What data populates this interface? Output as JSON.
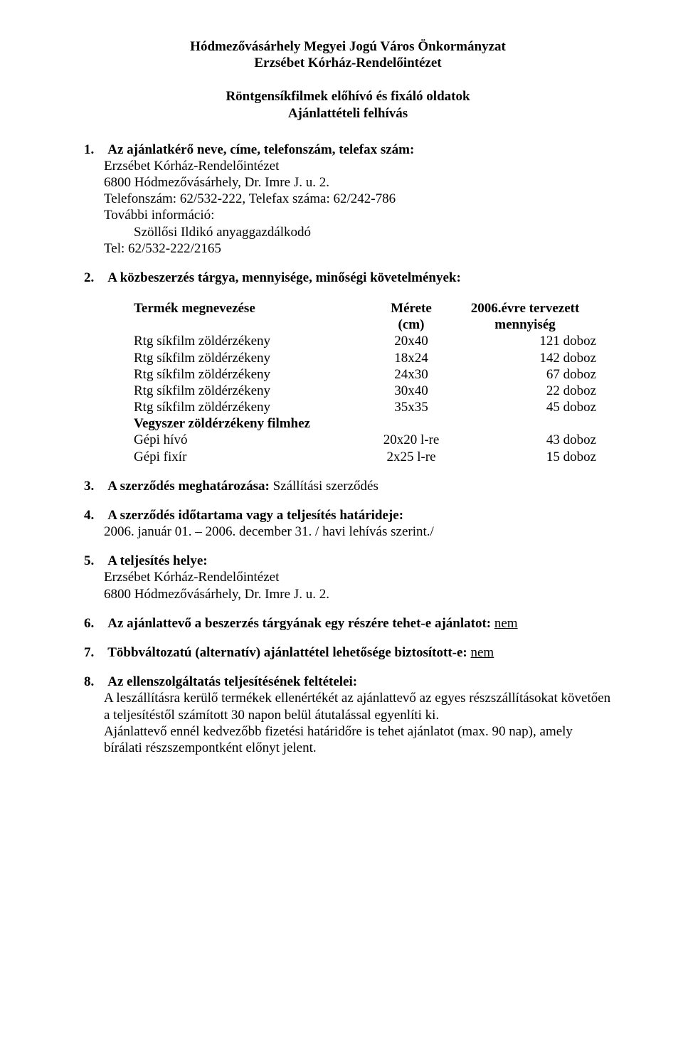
{
  "header": {
    "line1": "Hódmezővásárhely Megyei Jogú Város Önkormányzat",
    "line2": "Erzsébet Kórház-Rendelőintézet",
    "sub1": "Röntgensíkfilmek előhívó és fixáló oldatok",
    "sub2": "Ajánlattételi felhívás"
  },
  "s1": {
    "num": "1.",
    "title": "Az ajánlatkérő neve, címe, telefonszám, telefax szám:",
    "l1": "Erzsébet Kórház-Rendelőintézet",
    "l2": "6800 Hódmezővásárhely, Dr. Imre J. u. 2.",
    "l3": "Telefonszám: 62/532-222, Telefax száma: 62/242-786",
    "l4": "További információ:",
    "l5": "Szöllősi Ildikó anyaggazdálkodó",
    "l6": "Tel: 62/532-222/2165"
  },
  "s2": {
    "num": "2.",
    "title": "A közbeszerzés tárgya, mennyisége, minőségi követelmények:",
    "th1": "Termék megnevezése",
    "th2_1": "Mérete",
    "th2_2": "(cm)",
    "th3_1": "2006.évre tervezett",
    "th3_2": "mennyiség",
    "rows": [
      {
        "name": "Rtg síkfilm zöldérzékeny",
        "size": "20x40",
        "qty": "121 doboz"
      },
      {
        "name": "Rtg síkfilm zöldérzékeny",
        "size": "18x24",
        "qty": "142 doboz"
      },
      {
        "name": "Rtg síkfilm zöldérzékeny",
        "size": "24x30",
        "qty": "67 doboz"
      },
      {
        "name": "Rtg síkfilm zöldérzékeny",
        "size": "30x40",
        "qty": "22 doboz"
      },
      {
        "name": "Rtg síkfilm zöldérzékeny",
        "size": "35x35",
        "qty": "45 doboz"
      }
    ],
    "chem_label": "Vegyszer zöldérzékeny filmhez",
    "chem_rows": [
      {
        "name": "Gépi hívó",
        "size": "20x20 l-re",
        "qty": "43 doboz"
      },
      {
        "name": "Gépi fixír",
        "size": "2x25 l-re",
        "qty": "15 doboz"
      }
    ]
  },
  "s3": {
    "num": "3.",
    "title": "A szerződés meghatározása: ",
    "value": "Szállítási szerződés"
  },
  "s4": {
    "num": "4.",
    "title": "A szerződés időtartama vagy a  teljesítés határideje:",
    "l1": "2006. január 01. – 2006. december 31.  / havi lehívás szerint./"
  },
  "s5": {
    "num": "5.",
    "title": "A teljesítés helye:",
    "l1": "Erzsébet Kórház-Rendelőintézet",
    "l2": "6800 Hódmezővásárhely, Dr. Imre J. u. 2."
  },
  "s6": {
    "num": "6.",
    "title": "Az ajánlattevő a beszerzés tárgyának egy részére tehet-e ajánlatot:    ",
    "answer": "nem"
  },
  "s7": {
    "num": "7.",
    "title": "Többváltozatú (alternatív) ajánlattétel lehetősége biztosított-e:  ",
    "answer": "nem"
  },
  "s8": {
    "num": "8.",
    "title": "Az ellenszolgáltatás teljesítésének feltételei:",
    "p1": "A leszállításra kerülő termékek ellenértékét  az ajánlattevő az egyes részszállításokat követően a teljesítéstől számított 30 napon belül átutalással egyenlíti ki.",
    "p2": "Ajánlattevő ennél kedvezőbb fizetési határidőre is tehet ajánlatot (max. 90 nap), amely bírálati részszempontként előnyt jelent."
  }
}
